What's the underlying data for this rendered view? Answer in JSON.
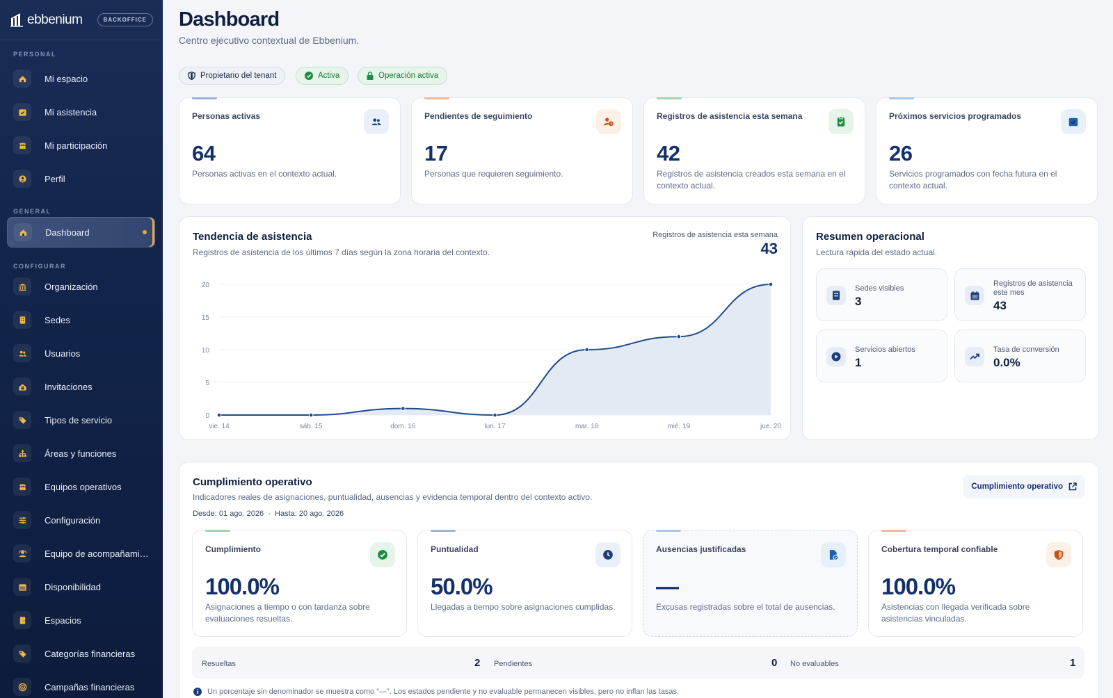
{
  "brand": {
    "name": "ebbenium",
    "badge": "BACKOFFICE"
  },
  "sidebar": {
    "sections": [
      {
        "label": "PERSONAL"
      },
      {
        "label": "GENERAL"
      },
      {
        "label": "CONFIGURAR"
      }
    ],
    "items": [
      {
        "label": "Mi espacio",
        "icon": "home-icon"
      },
      {
        "label": "Mi asistencia",
        "icon": "calendar-check-icon"
      },
      {
        "label": "Mi participación",
        "icon": "group-icon"
      },
      {
        "label": "Perfil",
        "icon": "user-circle-icon"
      },
      {
        "label": "Dashboard",
        "icon": "home-icon",
        "active": true
      },
      {
        "label": "Organización",
        "icon": "bank-icon"
      },
      {
        "label": "Sedes",
        "icon": "building-icon"
      },
      {
        "label": "Usuarios",
        "icon": "users-icon"
      },
      {
        "label": "Invitaciones",
        "icon": "lock-house-icon"
      },
      {
        "label": "Tipos de servicio",
        "icon": "tag-icon"
      },
      {
        "label": "Áreas y funciones",
        "icon": "org-chart-icon"
      },
      {
        "label": "Equipos operativos",
        "icon": "team-icon"
      },
      {
        "label": "Configuración",
        "icon": "sliders-icon"
      },
      {
        "label": "Equipo de acompañamie...",
        "icon": "support-icon"
      },
      {
        "label": "Disponibilidad",
        "icon": "calendar-icon"
      },
      {
        "label": "Espacios",
        "icon": "door-icon"
      },
      {
        "label": "Categorías financieras",
        "icon": "tag-icon"
      },
      {
        "label": "Campañas financieras",
        "icon": "target-icon"
      }
    ]
  },
  "header": {
    "title": "Dashboard",
    "subtitle": "Centro ejecutivo contextual de Ebbenium."
  },
  "pills": [
    {
      "label": "Propietario del tenant",
      "icon": "shield-icon"
    },
    {
      "label": "Activa",
      "icon": "check-circle-icon"
    },
    {
      "label": "Operación activa",
      "icon": "lock-icon"
    }
  ],
  "kpis": [
    {
      "title": "Personas activas",
      "value": "64",
      "desc": "Personas activas en el contexto actual.",
      "icon": "users-icon",
      "accent": "#9bb3db"
    },
    {
      "title": "Pendientes de seguimiento",
      "value": "17",
      "desc": "Personas que requieren seguimiento.",
      "icon": "user-clock-icon",
      "accent": "#f0b79a"
    },
    {
      "title": "Registros de asistencia esta semana",
      "value": "42",
      "desc": "Registros de asistencia creados esta semana en el contexto actual.",
      "icon": "clipboard-check-icon",
      "accent": "#9fd3ad"
    },
    {
      "title": "Próximos servicios programados",
      "value": "26",
      "desc": "Servicios programados con fecha futura en el contexto actual.",
      "icon": "calendar-check-icon",
      "accent": "#a9c7e8"
    }
  ],
  "trend": {
    "title": "Tendencia de asistencia",
    "subtitle": "Registros de asistencia de los últimos 7 días según la zona horaria del contexto.",
    "week_label": "Registros de asistencia esta semana",
    "week_value": "43"
  },
  "chart_data": {
    "type": "area",
    "categories": [
      "vie. 14",
      "sáb. 15",
      "dom. 16",
      "lun. 17",
      "mar. 18",
      "mié. 19",
      "jue. 20"
    ],
    "values": [
      0,
      0,
      1,
      0,
      10,
      12,
      20
    ],
    "ylim": [
      0,
      20
    ],
    "yticks": [
      "0",
      "5",
      "10",
      "15",
      "20"
    ],
    "grid": true,
    "color": "#1e4a8f"
  },
  "summary": {
    "title": "Resumen operacional",
    "subtitle": "Lectura rápida del estado actual.",
    "items": [
      {
        "label": "Sedes visibles",
        "value": "3",
        "icon": "building-icon"
      },
      {
        "label": "Registros de asistencia este mes",
        "value": "43",
        "icon": "calendar-icon"
      },
      {
        "label": "Servicios abiertos",
        "value": "1",
        "icon": "play-circle-icon"
      },
      {
        "label": "Tasa de conversión",
        "value": "0.0%",
        "icon": "trending-up-icon"
      }
    ]
  },
  "compliance": {
    "title": "Cumplimiento operativo",
    "subtitle": "Indicadores reales de asignaciones, puntualidad, ausencias y evidencia temporal dentro del contexto activo.",
    "range": "Desde: 01 ago. 2026  ·  Hasta: 20 ago. 2026",
    "button": "Cumplimiento operativo",
    "cards": [
      {
        "title": "Cumplimiento",
        "value": "100.0%",
        "desc": "Asignaciones a tiempo o con tardanza sobre evaluaciones resueltas.",
        "icon": "check-circle-icon",
        "accent": "#9fd3ad"
      },
      {
        "title": "Puntualidad",
        "value": "50.0%",
        "desc": "Llegadas a tiempo sobre asignaciones cumplidas.",
        "icon": "clock-icon",
        "accent": "#9bb3db"
      },
      {
        "title": "Ausencias justificadas",
        "value": "—",
        "desc": "Excusas registradas sobre el total de ausencias.",
        "icon": "file-check-icon",
        "accent": "#a9c7e8"
      },
      {
        "title": "Cobertura temporal confiable",
        "value": "100.0%",
        "desc": "Asistencias con llegada verificada sobre asistencias vinculadas.",
        "icon": "shield-icon",
        "accent": "#f0b79a"
      }
    ],
    "counts": [
      {
        "label": "Resueltas",
        "value": "2"
      },
      {
        "label": "Pendientes",
        "value": "0"
      },
      {
        "label": "No evaluables",
        "value": "1"
      }
    ],
    "note": "Un porcentaje sin denominador se muestra como “—”. Los estados pendiente y no evaluable permanecen visibles, pero no inflan las tasas."
  }
}
